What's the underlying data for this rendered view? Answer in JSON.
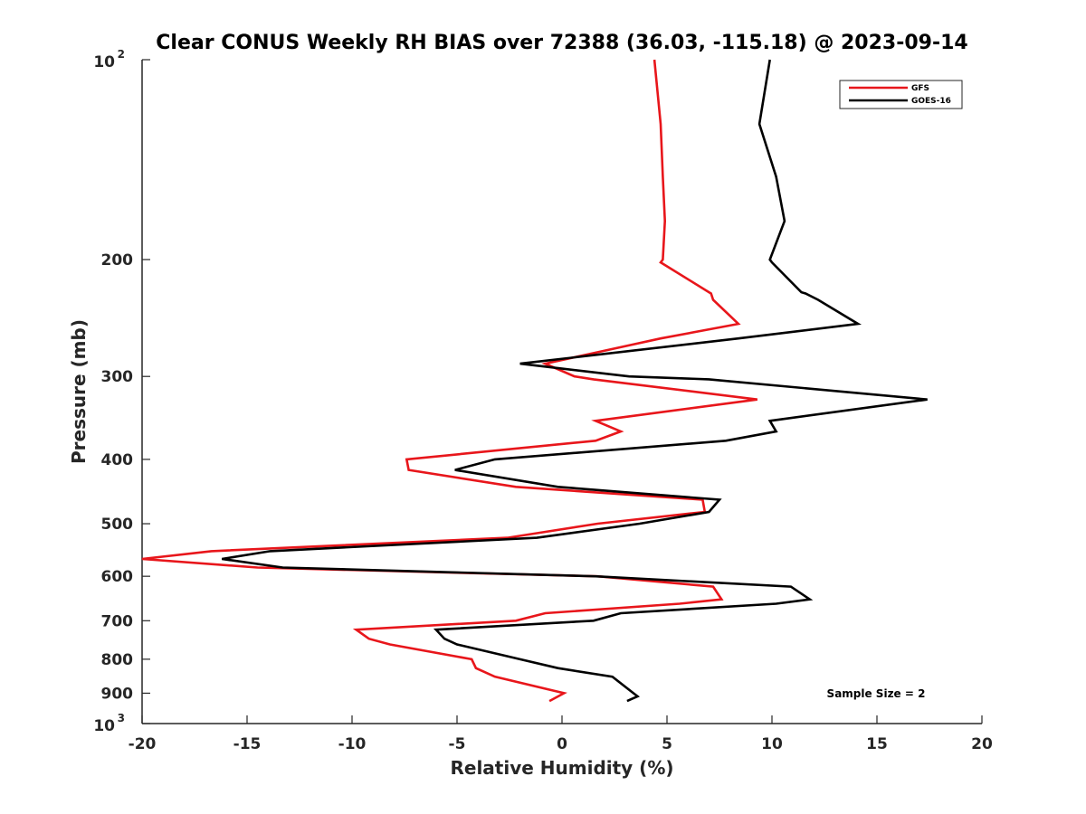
{
  "chart_data": {
    "type": "line",
    "title": "Clear CONUS Weekly RH BIAS over 72388 (36.03, -115.18) @ 2023-09-14",
    "xlabel": "Relative Humidity (%)",
    "ylabel": "Pressure (mb)",
    "xlim": [
      -20,
      20
    ],
    "ylim": [
      100,
      1000
    ],
    "y_scale": "log",
    "y_reversed": true,
    "grid": false,
    "legend_position": "top-right",
    "x_ticks": [
      "-20",
      "-15",
      "-10",
      "-5",
      "0",
      "5",
      "10",
      "15",
      "20"
    ],
    "y_ticks": [
      {
        "value": 100,
        "base": "10",
        "exp": "2"
      },
      {
        "value": 200,
        "label": "200"
      },
      {
        "value": 300,
        "label": "300"
      },
      {
        "value": 400,
        "label": "400"
      },
      {
        "value": 500,
        "label": "500"
      },
      {
        "value": 600,
        "label": "600"
      },
      {
        "value": 700,
        "label": "700"
      },
      {
        "value": 800,
        "label": "800"
      },
      {
        "value": 900,
        "label": "900"
      },
      {
        "value": 1000,
        "base": "10",
        "exp": "3"
      }
    ],
    "series": [
      {
        "name": "GFS",
        "color": "#e8161b",
        "points": [
          [
            4.4,
            100
          ],
          [
            4.7,
            125
          ],
          [
            4.8,
            150
          ],
          [
            4.9,
            175
          ],
          [
            4.8,
            200
          ],
          [
            4.7,
            202
          ],
          [
            7.0,
            224
          ],
          [
            7.1,
            225
          ],
          [
            7.2,
            230
          ],
          [
            8.4,
            250
          ],
          [
            4.7,
            263
          ],
          [
            -0.8,
            287
          ],
          [
            0.6,
            300
          ],
          [
            1.5,
            303
          ],
          [
            9.3,
            325
          ],
          [
            1.6,
            350
          ],
          [
            2.8,
            363
          ],
          [
            1.6,
            375
          ],
          [
            -7.4,
            400
          ],
          [
            -7.3,
            415
          ],
          [
            -2.2,
            440
          ],
          [
            6.7,
            460
          ],
          [
            6.8,
            480
          ],
          [
            1.7,
            500
          ],
          [
            -2.6,
            525
          ],
          [
            -16.7,
            550
          ],
          [
            -20.0,
            565
          ],
          [
            -14.5,
            582
          ],
          [
            1.7,
            600
          ],
          [
            7.2,
            622
          ],
          [
            7.6,
            650
          ],
          [
            5.6,
            660
          ],
          [
            -0.8,
            682
          ],
          [
            -2.2,
            700
          ],
          [
            -9.8,
            722
          ],
          [
            -9.2,
            745
          ],
          [
            -8.2,
            760
          ],
          [
            -4.3,
            800
          ],
          [
            -4.1,
            825
          ],
          [
            -3.2,
            850
          ],
          [
            0.1,
            900
          ],
          [
            -0.6,
            925
          ]
        ]
      },
      {
        "name": "GOES-16",
        "color": "#000000",
        "points": [
          [
            9.9,
            100
          ],
          [
            9.4,
            125
          ],
          [
            10.2,
            150
          ],
          [
            10.6,
            175
          ],
          [
            9.9,
            200
          ],
          [
            10.0,
            202
          ],
          [
            11.4,
            224
          ],
          [
            11.6,
            225
          ],
          [
            12.2,
            230
          ],
          [
            14.1,
            250
          ],
          [
            8.4,
            263
          ],
          [
            -2.0,
            287
          ],
          [
            3.2,
            300
          ],
          [
            7.0,
            303
          ],
          [
            17.4,
            325
          ],
          [
            9.9,
            350
          ],
          [
            10.2,
            363
          ],
          [
            7.8,
            375
          ],
          [
            -3.2,
            400
          ],
          [
            -5.1,
            415
          ],
          [
            -0.2,
            440
          ],
          [
            7.5,
            460
          ],
          [
            7.0,
            480
          ],
          [
            3.7,
            500
          ],
          [
            -1.2,
            525
          ],
          [
            -13.9,
            550
          ],
          [
            -16.2,
            565
          ],
          [
            -13.3,
            582
          ],
          [
            1.6,
            600
          ],
          [
            10.9,
            622
          ],
          [
            11.8,
            650
          ],
          [
            10.2,
            660
          ],
          [
            2.8,
            682
          ],
          [
            1.5,
            700
          ],
          [
            -6.0,
            722
          ],
          [
            -5.6,
            745
          ],
          [
            -5.0,
            760
          ],
          [
            -2.0,
            800
          ],
          [
            -0.2,
            825
          ],
          [
            2.4,
            850
          ],
          [
            3.4,
            900
          ],
          [
            3.6,
            910
          ],
          [
            3.1,
            925
          ]
        ]
      }
    ],
    "annotations": [
      "Sample Size = 2"
    ]
  },
  "colors": {
    "gfs": "#e8161b",
    "goes16": "#000000",
    "axes": "#262626"
  }
}
